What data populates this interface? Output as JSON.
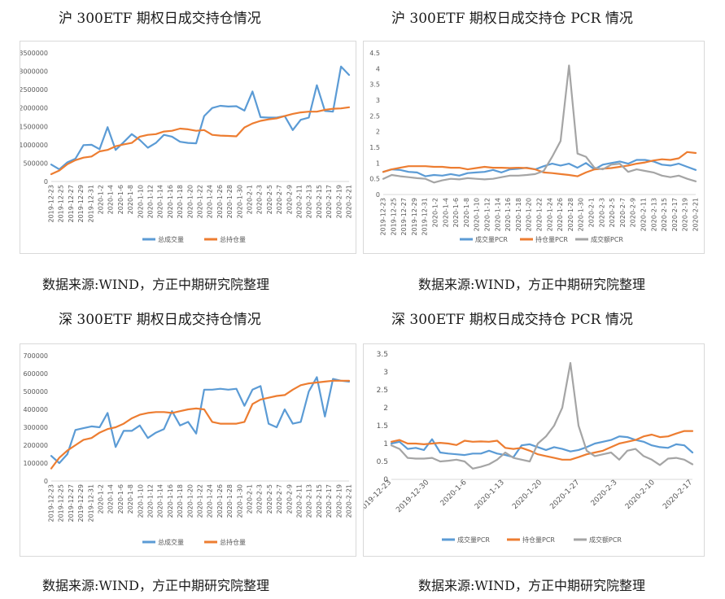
{
  "page": {
    "titles": {
      "sh_vol": "沪 300ETF 期权日成交持仓情况",
      "sh_pcr": "沪 300ETF 期权日成交持仓 PCR 情况",
      "sz_vol": "深 300ETF 期权日成交持仓情况",
      "sz_pcr": "深 300ETF 期权日成交持仓 PCR 情况"
    },
    "source": "数据来源:WIND，方正中期研究院整理"
  },
  "colors": {
    "blue": "#5b9bd5",
    "orange": "#ed7d31",
    "gray": "#a5a5a5",
    "axis": "#d9d9d9",
    "tick": "#595959"
  },
  "chart_data": [
    {
      "id": "sh_vol",
      "type": "line",
      "title": "沪 300ETF 期权日成交持仓情况",
      "categories": [
        "2019-12-23",
        "2019-12-24",
        "2019-12-25",
        "2019-12-26",
        "2019-12-27",
        "2019-12-30",
        "2019-12-31",
        "2020-1-2",
        "2020-1-3",
        "2020-1-6",
        "2020-1-7",
        "2020-1-8",
        "2020-1-9",
        "2020-1-10",
        "2020-1-13",
        "2020-1-14",
        "2020-1-15",
        "2020-1-16",
        "2020-1-17",
        "2020-1-20",
        "2020-1-21",
        "2020-1-22",
        "2020-1-23",
        "2020-2-3",
        "2020-2-4",
        "2020-2-5",
        "2020-2-6",
        "2020-2-7",
        "2020-2-10",
        "2020-2-11",
        "2020-2-12",
        "2020-2-13",
        "2020-2-14",
        "2020-2-17",
        "2020-2-18",
        "2020-2-19",
        "2020-2-20",
        "2020-2-21"
      ],
      "tick_labels": [
        "2019-12-23",
        "2019-12-25",
        "2019-12-27",
        "2019-12-29",
        "2019-12-31",
        "2020-1-2",
        "2020-1-4",
        "2020-1-6",
        "2020-1-8",
        "2020-1-10",
        "2020-1-12",
        "2020-1-14",
        "2020-1-16",
        "2020-1-18",
        "2020-1-20",
        "2020-1-22",
        "2020-1-24",
        "2020-1-26",
        "2020-1-28",
        "2020-1-30",
        "2020-2-1",
        "2020-2-3",
        "2020-2-5",
        "2020-2-7",
        "2020-2-9",
        "2020-2-11",
        "2020-2-13",
        "2020-2-15",
        "2020-2-17",
        "2020-2-19",
        "2020-2-21"
      ],
      "series": [
        {
          "name": "总成交量",
          "color": "blue",
          "values": [
            460000,
            330000,
            520000,
            620000,
            990000,
            1000000,
            880000,
            1480000,
            860000,
            1070000,
            1290000,
            1130000,
            920000,
            1050000,
            1270000,
            1220000,
            1080000,
            1050000,
            1040000,
            1780000,
            2000000,
            2060000,
            2040000,
            2050000,
            1930000,
            2450000,
            1750000,
            1740000,
            1740000,
            1780000,
            1400000,
            1680000,
            1740000,
            2620000,
            1920000,
            1900000,
            3130000,
            2900000
          ]
        },
        {
          "name": "总持仓量",
          "color": "orange",
          "values": [
            200000,
            300000,
            470000,
            580000,
            650000,
            680000,
            820000,
            860000,
            960000,
            1010000,
            1050000,
            1220000,
            1270000,
            1290000,
            1360000,
            1380000,
            1440000,
            1420000,
            1380000,
            1400000,
            1270000,
            1250000,
            1240000,
            1230000,
            1470000,
            1580000,
            1650000,
            1690000,
            1720000,
            1780000,
            1840000,
            1880000,
            1900000,
            1900000,
            1950000,
            1980000,
            1990000,
            2020000
          ]
        }
      ],
      "ylim": [
        0,
        3500000
      ],
      "yticks": [
        0,
        500000,
        1000000,
        1500000,
        2000000,
        2500000,
        3000000,
        3500000
      ]
    },
    {
      "id": "sh_pcr",
      "type": "line",
      "title": "沪 300ETF 期权日成交持仓 PCR 情况",
      "categories": [
        "2019-12-23",
        "2019-12-24",
        "2019-12-25",
        "2019-12-26",
        "2019-12-27",
        "2019-12-30",
        "2019-12-31",
        "2020-1-2",
        "2020-1-3",
        "2020-1-6",
        "2020-1-7",
        "2020-1-8",
        "2020-1-9",
        "2020-1-10",
        "2020-1-13",
        "2020-1-14",
        "2020-1-15",
        "2020-1-16",
        "2020-1-17",
        "2020-1-20",
        "2020-1-21",
        "2020-1-22",
        "2020-1-23",
        "2020-2-3",
        "2020-2-4",
        "2020-2-5",
        "2020-2-6",
        "2020-2-7",
        "2020-2-10",
        "2020-2-11",
        "2020-2-12",
        "2020-2-13",
        "2020-2-14",
        "2020-2-17",
        "2020-2-18",
        "2020-2-19",
        "2020-2-20",
        "2020-2-21"
      ],
      "tick_labels": [
        "2019-12-23",
        "2019-12-25",
        "2019-12-27",
        "2019-12-29",
        "2019-12-31",
        "2020-1-2",
        "2020-1-4",
        "2020-1-6",
        "2020-1-8",
        "2020-1-10",
        "2020-1-12",
        "2020-1-14",
        "2020-1-16",
        "2020-1-18",
        "2020-1-20",
        "2020-1-22",
        "2020-1-24",
        "2020-1-26",
        "2020-1-28",
        "2020-1-30",
        "2020-2-1",
        "2020-2-3",
        "2020-2-5",
        "2020-2-7",
        "2020-2-9",
        "2020-2-11",
        "2020-2-13",
        "2020-2-15",
        "2020-2-17",
        "2020-2-19",
        "2020-2-21"
      ],
      "series": [
        {
          "name": "成交量PCR",
          "color": "blue",
          "values": [
            0.72,
            0.8,
            0.78,
            0.72,
            0.7,
            0.58,
            0.62,
            0.6,
            0.65,
            0.6,
            0.68,
            0.7,
            0.72,
            0.78,
            0.7,
            0.8,
            0.82,
            0.85,
            0.8,
            0.9,
            0.98,
            0.92,
            0.98,
            0.85,
            1.0,
            0.8,
            0.95,
            1.0,
            1.05,
            0.98,
            1.1,
            1.1,
            1.05,
            0.95,
            0.92,
            0.98,
            0.88,
            0.78
          ]
        },
        {
          "name": "持仓量PCR",
          "color": "orange",
          "values": [
            0.72,
            0.8,
            0.85,
            0.9,
            0.9,
            0.9,
            0.88,
            0.88,
            0.85,
            0.85,
            0.8,
            0.84,
            0.88,
            0.85,
            0.85,
            0.84,
            0.85,
            0.84,
            0.8,
            0.7,
            0.68,
            0.65,
            0.62,
            0.58,
            0.7,
            0.8,
            0.82,
            0.84,
            0.88,
            0.92,
            0.98,
            1.02,
            1.08,
            1.12,
            1.1,
            1.15,
            1.35,
            1.32
          ]
        },
        {
          "name": "成交额PCR",
          "color": "gray",
          "values": [
            0.5,
            0.62,
            0.58,
            0.55,
            0.52,
            0.5,
            0.38,
            0.45,
            0.5,
            0.48,
            0.52,
            0.5,
            0.48,
            0.5,
            0.55,
            0.6,
            0.6,
            0.62,
            0.65,
            0.75,
            1.2,
            1.7,
            4.1,
            1.3,
            1.2,
            0.85,
            0.8,
            0.95,
            0.98,
            0.72,
            0.8,
            0.75,
            0.7,
            0.6,
            0.55,
            0.6,
            0.5,
            0.42
          ]
        }
      ],
      "ylim": [
        0,
        4.5
      ],
      "yticks": [
        0,
        0.5,
        1,
        1.5,
        2,
        2.5,
        3,
        3.5,
        4,
        4.5
      ]
    },
    {
      "id": "sz_vol",
      "type": "line",
      "title": "深 300ETF 期权日成交持仓情况",
      "categories": [
        "2019-12-23",
        "2019-12-24",
        "2019-12-25",
        "2019-12-26",
        "2019-12-27",
        "2019-12-30",
        "2019-12-31",
        "2020-1-2",
        "2020-1-3",
        "2020-1-6",
        "2020-1-7",
        "2020-1-8",
        "2020-1-9",
        "2020-1-10",
        "2020-1-13",
        "2020-1-14",
        "2020-1-15",
        "2020-1-16",
        "2020-1-17",
        "2020-1-20",
        "2020-1-21",
        "2020-1-22",
        "2020-1-23",
        "2020-2-3",
        "2020-2-4",
        "2020-2-5",
        "2020-2-6",
        "2020-2-7",
        "2020-2-10",
        "2020-2-11",
        "2020-2-12",
        "2020-2-13",
        "2020-2-14",
        "2020-2-17",
        "2020-2-18",
        "2020-2-19",
        "2020-2-20",
        "2020-2-21"
      ],
      "tick_labels": [
        "2019-12-23",
        "2019-12-25",
        "2019-12-27",
        "2019-12-29",
        "2019-12-31",
        "2020-1-2",
        "2020-1-4",
        "2020-1-6",
        "2020-1-8",
        "2020-1-10",
        "2020-1-12",
        "2020-1-14",
        "2020-1-16",
        "2020-1-18",
        "2020-1-20",
        "2020-1-22",
        "2020-1-24",
        "2020-1-26",
        "2020-1-28",
        "2020-1-30",
        "2020-2-1",
        "2020-2-3",
        "2020-2-5",
        "2020-2-7",
        "2020-2-9",
        "2020-2-11",
        "2020-2-13",
        "2020-2-15",
        "2020-2-17",
        "2020-2-19",
        "2020-2-21"
      ],
      "series": [
        {
          "name": "总成交量",
          "color": "blue",
          "values": [
            140000,
            100000,
            150000,
            285000,
            295000,
            305000,
            300000,
            380000,
            190000,
            280000,
            280000,
            310000,
            240000,
            270000,
            290000,
            390000,
            310000,
            330000,
            265000,
            510000,
            510000,
            515000,
            510000,
            515000,
            420000,
            510000,
            530000,
            320000,
            300000,
            400000,
            320000,
            330000,
            500000,
            580000,
            360000,
            570000,
            560000,
            555000
          ]
        },
        {
          "name": "总持仓量",
          "color": "orange",
          "values": [
            70000,
            130000,
            170000,
            200000,
            230000,
            240000,
            270000,
            290000,
            300000,
            320000,
            350000,
            370000,
            380000,
            385000,
            385000,
            380000,
            390000,
            400000,
            405000,
            400000,
            330000,
            320000,
            320000,
            320000,
            330000,
            430000,
            455000,
            465000,
            475000,
            480000,
            510000,
            535000,
            545000,
            550000,
            555000,
            560000,
            560000,
            560000
          ]
        }
      ],
      "ylim": [
        0,
        700000
      ],
      "yticks": [
        0,
        100000,
        200000,
        300000,
        400000,
        500000,
        600000,
        700000
      ]
    },
    {
      "id": "sz_pcr",
      "type": "line",
      "title": "深 300ETF 期权日成交持仓 PCR 情况",
      "categories": [
        "2019-12-23",
        "2019-12-24",
        "2019-12-25",
        "2019-12-26",
        "2019-12-27",
        "2019-12-30",
        "2019-12-31",
        "2020-1-2",
        "2020-1-3",
        "2020-1-6",
        "2020-1-7",
        "2020-1-8",
        "2020-1-9",
        "2020-1-10",
        "2020-1-13",
        "2020-1-14",
        "2020-1-15",
        "2020-1-16",
        "2020-1-17",
        "2020-1-20",
        "2020-1-21",
        "2020-1-22",
        "2020-1-23",
        "2020-2-3",
        "2020-2-4",
        "2020-2-5",
        "2020-2-6",
        "2020-2-7",
        "2020-2-10",
        "2020-2-11",
        "2020-2-12",
        "2020-2-13",
        "2020-2-14",
        "2020-2-17",
        "2020-2-18",
        "2020-2-19",
        "2020-2-20",
        "2020-2-21"
      ],
      "tick_labels": [
        "2019-12-23",
        "2019-12-30",
        "2020-1-6",
        "2020-1-13",
        "2020-1-20",
        "2020-1-27",
        "2020-2-3",
        "2020-2-10",
        "2020-2-17"
      ],
      "series": [
        {
          "name": "成交量PCR",
          "color": "blue",
          "values": [
            1.0,
            1.05,
            0.85,
            0.88,
            0.82,
            1.12,
            0.75,
            0.72,
            0.7,
            0.68,
            0.72,
            0.72,
            0.8,
            0.72,
            0.68,
            0.62,
            0.95,
            0.98,
            0.9,
            0.82,
            0.9,
            0.85,
            0.78,
            0.82,
            0.9,
            1.0,
            1.05,
            1.1,
            1.2,
            1.18,
            1.1,
            1.05,
            0.95,
            0.9,
            0.88,
            0.98,
            0.95,
            0.75
          ]
        },
        {
          "name": "持仓量PCR",
          "color": "orange",
          "values": [
            1.05,
            1.1,
            1.0,
            1.0,
            0.98,
            1.0,
            1.02,
            1.0,
            0.96,
            1.08,
            1.05,
            1.06,
            1.05,
            1.08,
            0.88,
            0.85,
            0.88,
            0.8,
            0.7,
            0.65,
            0.6,
            0.55,
            0.55,
            0.62,
            0.7,
            0.75,
            0.8,
            0.9,
            1.0,
            1.05,
            1.1,
            1.2,
            1.25,
            1.18,
            1.2,
            1.28,
            1.35,
            1.35
          ]
        },
        {
          "name": "成交额PCR",
          "color": "gray",
          "values": [
            0.95,
            0.85,
            0.6,
            0.58,
            0.58,
            0.6,
            0.5,
            0.52,
            0.55,
            0.5,
            0.3,
            0.35,
            0.42,
            0.55,
            0.75,
            0.6,
            0.55,
            0.5,
            1.0,
            1.2,
            1.5,
            2.0,
            3.25,
            1.5,
            0.8,
            0.65,
            0.7,
            0.75,
            0.55,
            0.8,
            0.85,
            0.65,
            0.55,
            0.4,
            0.58,
            0.6,
            0.55,
            0.42
          ]
        }
      ],
      "ylim": [
        0,
        3.5
      ],
      "yticks": [
        0,
        0.5,
        1,
        1.5,
        2,
        2.5,
        3,
        3.5
      ]
    }
  ]
}
